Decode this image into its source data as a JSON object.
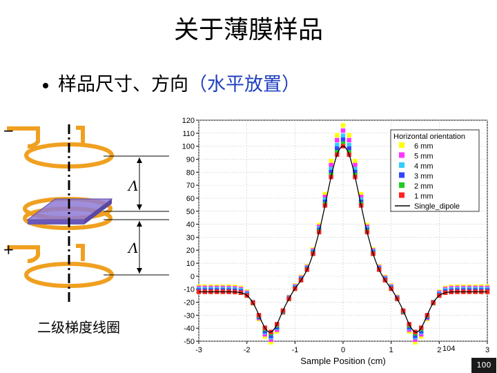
{
  "slide": {
    "title": "关于薄膜样品",
    "bullet_prefix": "样品尺寸、方向",
    "bullet_highlight": "（水平放置）",
    "coil_label": "二级梯度线圈",
    "minus_sign": "−",
    "plus_sign": "+",
    "lambda_top": "Λ",
    "lambda_bottom": "Λ",
    "page_number": "100",
    "figure_number": "104",
    "colors": {
      "coil": "#f0a020",
      "sample": "#8e7ad6",
      "highlight_text": "#1f3fbf"
    }
  },
  "chart_data": {
    "type": "scatter",
    "xlabel": "Sample Position  (cm)",
    "ylabel": "",
    "xlim": [
      -3,
      3
    ],
    "ylim": [
      -50,
      120
    ],
    "xticks": [
      "-3",
      "-2",
      "-1",
      "0",
      "1",
      "2",
      "3"
    ],
    "yticks": [
      "-50",
      "-40",
      "-30",
      "-20",
      "-10",
      "0",
      "10",
      "20",
      "30",
      "40",
      "50",
      "60",
      "70",
      "80",
      "90",
      "100",
      "110",
      "120"
    ],
    "grid": true,
    "legend_title": "Horizontal orientation",
    "legend_position": "top-right",
    "series": [
      {
        "name": "6 mm",
        "color": "#ffff00",
        "peak": 116,
        "dip": -51,
        "tail": -8
      },
      {
        "name": "5 mm",
        "color": "#ff33ff",
        "peak": 112,
        "dip": -49,
        "tail": -9
      },
      {
        "name": "4 mm",
        "color": "#33ccff",
        "peak": 108,
        "dip": -47,
        "tail": -10
      },
      {
        "name": "3 mm",
        "color": "#3344ff",
        "peak": 105,
        "dip": -46,
        "tail": -11
      },
      {
        "name": "2 mm",
        "color": "#22cc22",
        "peak": 102,
        "dip": -44,
        "tail": -12
      },
      {
        "name": "1 mm",
        "color": "#ff2222",
        "peak": 100,
        "dip": -43,
        "tail": -12
      },
      {
        "name": "Single_dipole",
        "color": "#000000",
        "peak": 100,
        "dip": -43,
        "tail": -12
      }
    ]
  }
}
